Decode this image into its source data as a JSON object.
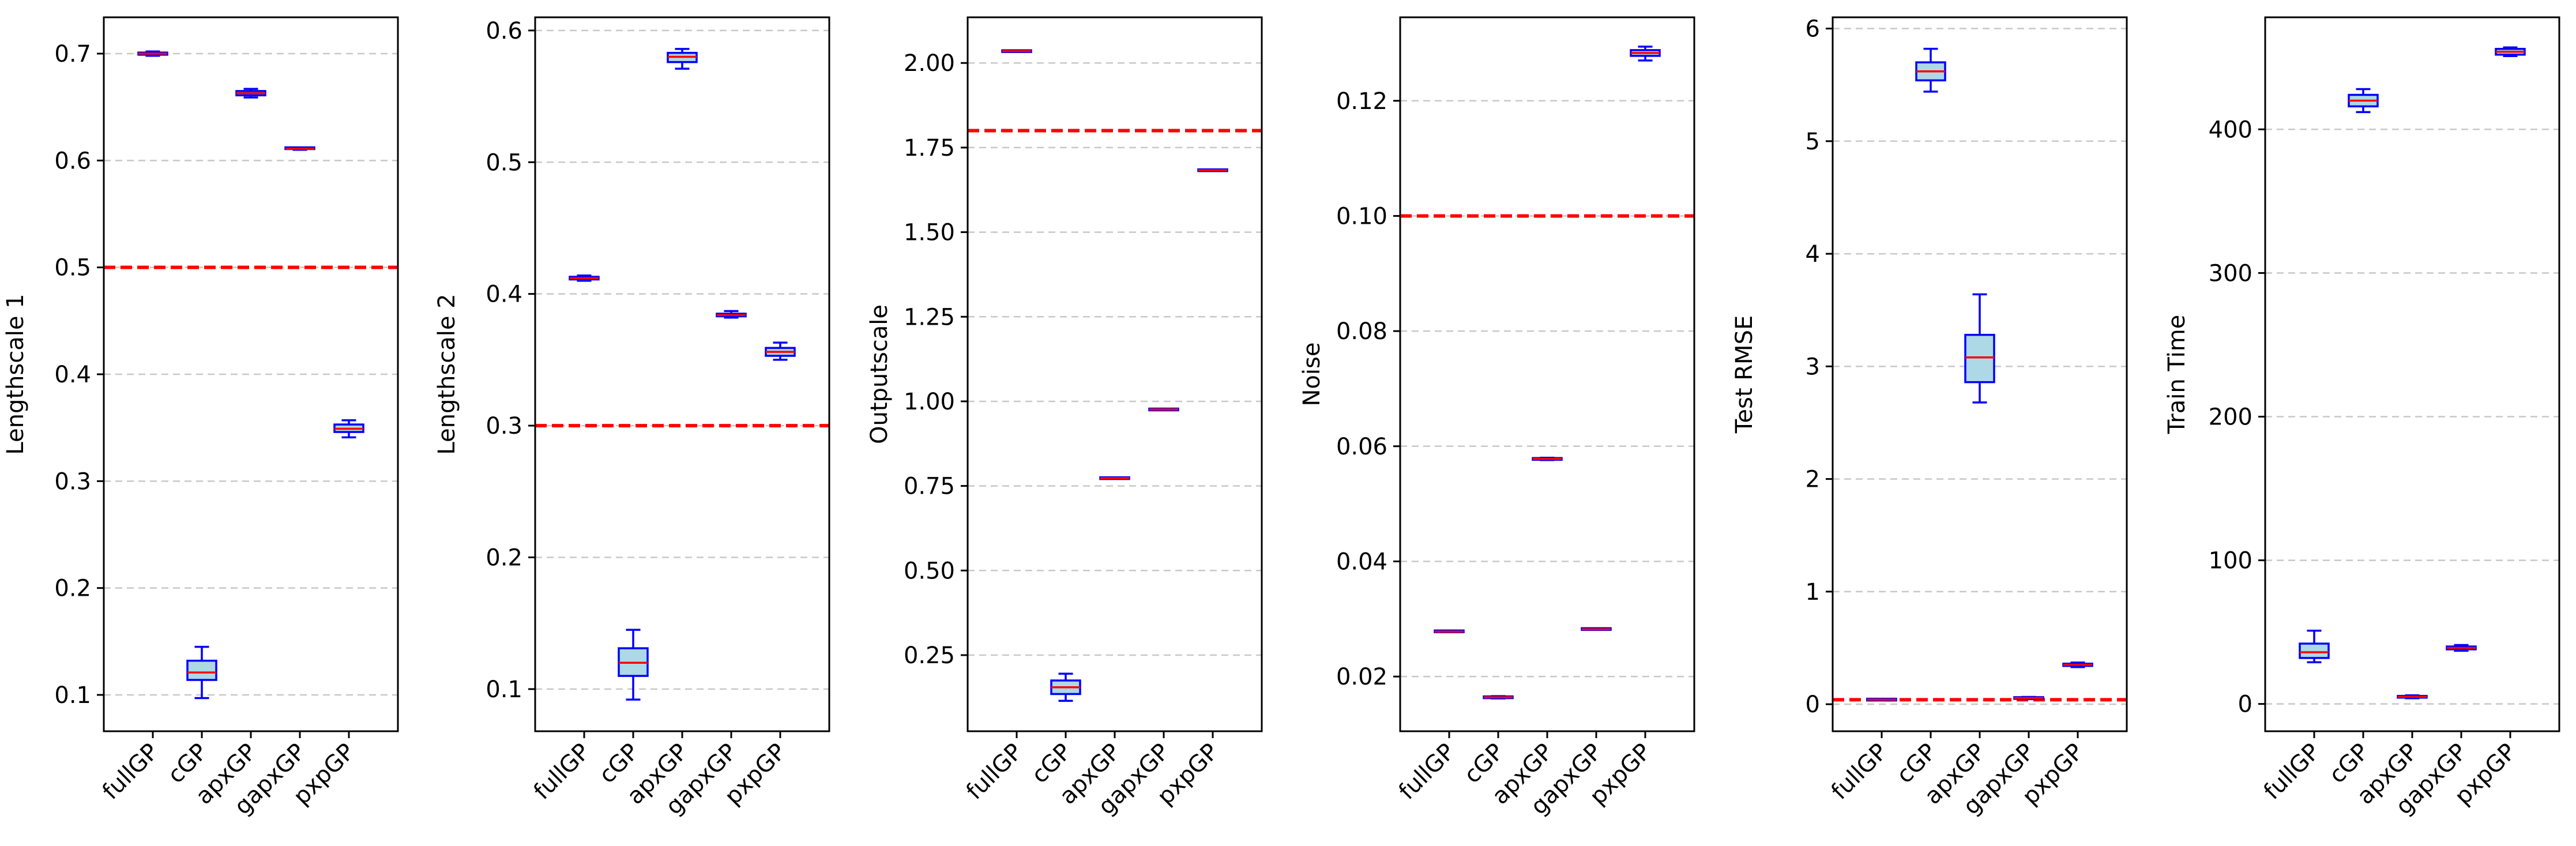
{
  "colors": {
    "box_edge": "#0000ff",
    "box_fill": "#add8e6",
    "median": "#ff0000",
    "true_value_line": "#ff0000",
    "grid": "#c8c8c8",
    "frame": "#000000"
  },
  "chart_data": [
    {
      "type": "box",
      "ylabel": "Lengthscale 1",
      "categories": [
        "fullGP",
        "cGP",
        "apxGP",
        "gapxGP",
        "pxpGP"
      ],
      "ylim": [
        0.066,
        0.734
      ],
      "yticks": [
        0.1,
        0.2,
        0.3,
        0.4,
        0.5,
        0.6,
        0.7
      ],
      "ytick_labels": [
        "0.1",
        "0.2",
        "0.3",
        "0.4",
        "0.5",
        "0.6",
        "0.7"
      ],
      "reference_line": 0.5,
      "grid": "y-dashed",
      "boxes": [
        {
          "whislo": 0.698,
          "q1": 0.699,
          "med": 0.7,
          "q3": 0.701,
          "whishi": 0.702
        },
        {
          "whislo": 0.097,
          "q1": 0.114,
          "med": 0.121,
          "q3": 0.132,
          "whishi": 0.145
        },
        {
          "whislo": 0.659,
          "q1": 0.661,
          "med": 0.663,
          "q3": 0.665,
          "whishi": 0.667
        },
        {
          "whislo": 0.61,
          "q1": 0.611,
          "med": 0.611,
          "q3": 0.612,
          "whishi": 0.612
        },
        {
          "whislo": 0.341,
          "q1": 0.346,
          "med": 0.349,
          "q3": 0.353,
          "whishi": 0.357
        }
      ]
    },
    {
      "type": "box",
      "ylabel": "Lengthscale 2",
      "categories": [
        "fullGP",
        "cGP",
        "apxGP",
        "gapxGP",
        "pxpGP"
      ],
      "ylim": [
        0.068,
        0.61
      ],
      "yticks": [
        0.1,
        0.2,
        0.3,
        0.4,
        0.5,
        0.6
      ],
      "ytick_labels": [
        "0.1",
        "0.2",
        "0.3",
        "0.4",
        "0.5",
        "0.6"
      ],
      "reference_line": 0.3,
      "grid": "y-dashed",
      "boxes": [
        {
          "whislo": 0.41,
          "q1": 0.411,
          "med": 0.412,
          "q3": 0.413,
          "whishi": 0.414
        },
        {
          "whislo": 0.092,
          "q1": 0.11,
          "med": 0.12,
          "q3": 0.131,
          "whishi": 0.145
        },
        {
          "whislo": 0.571,
          "q1": 0.576,
          "med": 0.58,
          "q3": 0.583,
          "whishi": 0.586
        },
        {
          "whislo": 0.382,
          "q1": 0.383,
          "med": 0.384,
          "q3": 0.385,
          "whishi": 0.387
        },
        {
          "whislo": 0.35,
          "q1": 0.353,
          "med": 0.356,
          "q3": 0.359,
          "whishi": 0.363
        }
      ]
    },
    {
      "type": "box",
      "ylabel": "Outputscale",
      "categories": [
        "fullGP",
        "cGP",
        "apxGP",
        "gapxGP",
        "pxpGP"
      ],
      "ylim": [
        0.025,
        2.135
      ],
      "yticks": [
        0.25,
        0.5,
        0.75,
        1.0,
        1.25,
        1.5,
        1.75,
        2.0
      ],
      "ytick_labels": [
        "0.25",
        "0.50",
        "0.75",
        "1.00",
        "1.25",
        "1.50",
        "1.75",
        "2.00"
      ],
      "reference_line": 1.8,
      "grid": "y-dashed",
      "boxes": [
        {
          "whislo": 2.033,
          "q1": 2.034,
          "med": 2.035,
          "q3": 2.036,
          "whishi": 2.037
        },
        {
          "whislo": 0.115,
          "q1": 0.135,
          "med": 0.155,
          "q3": 0.175,
          "whishi": 0.195
        },
        {
          "whislo": 0.771,
          "q1": 0.772,
          "med": 0.773,
          "q3": 0.774,
          "whishi": 0.775
        },
        {
          "whislo": 0.974,
          "q1": 0.975,
          "med": 0.976,
          "q3": 0.977,
          "whishi": 0.978
        },
        {
          "whislo": 1.681,
          "q1": 1.682,
          "med": 1.683,
          "q3": 1.684,
          "whishi": 1.685
        }
      ]
    },
    {
      "type": "box",
      "ylabel": "Noise",
      "categories": [
        "fullGP",
        "cGP",
        "apxGP",
        "gapxGP",
        "pxpGP"
      ],
      "ylim": [
        0.0105,
        0.1345
      ],
      "yticks": [
        0.02,
        0.04,
        0.06,
        0.08,
        0.1,
        0.12
      ],
      "ytick_labels": [
        "0.02",
        "0.04",
        "0.06",
        "0.08",
        "0.10",
        "0.12"
      ],
      "reference_line": 0.1,
      "grid": "y-dashed",
      "boxes": [
        {
          "whislo": 0.0277,
          "q1": 0.0278,
          "med": 0.0278,
          "q3": 0.0279,
          "whishi": 0.0279
        },
        {
          "whislo": 0.0162,
          "q1": 0.0163,
          "med": 0.0164,
          "q3": 0.0165,
          "whishi": 0.0166
        },
        {
          "whislo": 0.0576,
          "q1": 0.0577,
          "med": 0.0578,
          "q3": 0.0579,
          "whishi": 0.058
        },
        {
          "whislo": 0.0281,
          "q1": 0.0282,
          "med": 0.0282,
          "q3": 0.0283,
          "whishi": 0.0283
        },
        {
          "whislo": 0.127,
          "q1": 0.1278,
          "med": 0.1283,
          "q3": 0.1288,
          "whishi": 0.1294
        }
      ]
    },
    {
      "type": "box",
      "ylabel": "Test RMSE",
      "categories": [
        "fullGP",
        "cGP",
        "apxGP",
        "gapxGP",
        "pxpGP"
      ],
      "ylim": [
        -0.24,
        6.1
      ],
      "yticks": [
        0,
        1,
        2,
        3,
        4,
        5,
        6
      ],
      "ytick_labels": [
        "0",
        "1",
        "2",
        "3",
        "4",
        "5",
        "6"
      ],
      "reference_line": 0.04,
      "grid": "y-dashed",
      "boxes": [
        {
          "whislo": 0.038,
          "q1": 0.04,
          "med": 0.041,
          "q3": 0.042,
          "whishi": 0.044
        },
        {
          "whislo": 5.44,
          "q1": 5.54,
          "med": 5.62,
          "q3": 5.7,
          "whishi": 5.82
        },
        {
          "whislo": 2.68,
          "q1": 2.86,
          "med": 3.08,
          "q3": 3.28,
          "whishi": 3.64
        },
        {
          "whislo": 0.045,
          "q1": 0.05,
          "med": 0.055,
          "q3": 0.06,
          "whishi": 0.065
        },
        {
          "whislo": 0.33,
          "q1": 0.34,
          "med": 0.35,
          "q3": 0.36,
          "whishi": 0.37
        }
      ]
    },
    {
      "type": "box",
      "ylabel": "Train Time",
      "categories": [
        "fullGP",
        "cGP",
        "apxGP",
        "gapxGP",
        "pxpGP"
      ],
      "ylim": [
        -19,
        478
      ],
      "yticks": [
        0,
        100,
        200,
        300,
        400
      ],
      "ytick_labels": [
        "0",
        "100",
        "200",
        "300",
        "400"
      ],
      "reference_line": null,
      "grid": "y-dashed",
      "boxes": [
        {
          "whislo": 29,
          "q1": 32,
          "med": 36,
          "q3": 42,
          "whishi": 51
        },
        {
          "whislo": 412,
          "q1": 416,
          "med": 420,
          "q3": 424,
          "whishi": 428
        },
        {
          "whislo": 4,
          "q1": 4.5,
          "med": 5,
          "q3": 5.5,
          "whishi": 6
        },
        {
          "whislo": 37,
          "q1": 38,
          "med": 39,
          "q3": 40,
          "whishi": 41
        },
        {
          "whislo": 451,
          "q1": 452,
          "med": 454,
          "q3": 456,
          "whishi": 457
        }
      ]
    }
  ]
}
